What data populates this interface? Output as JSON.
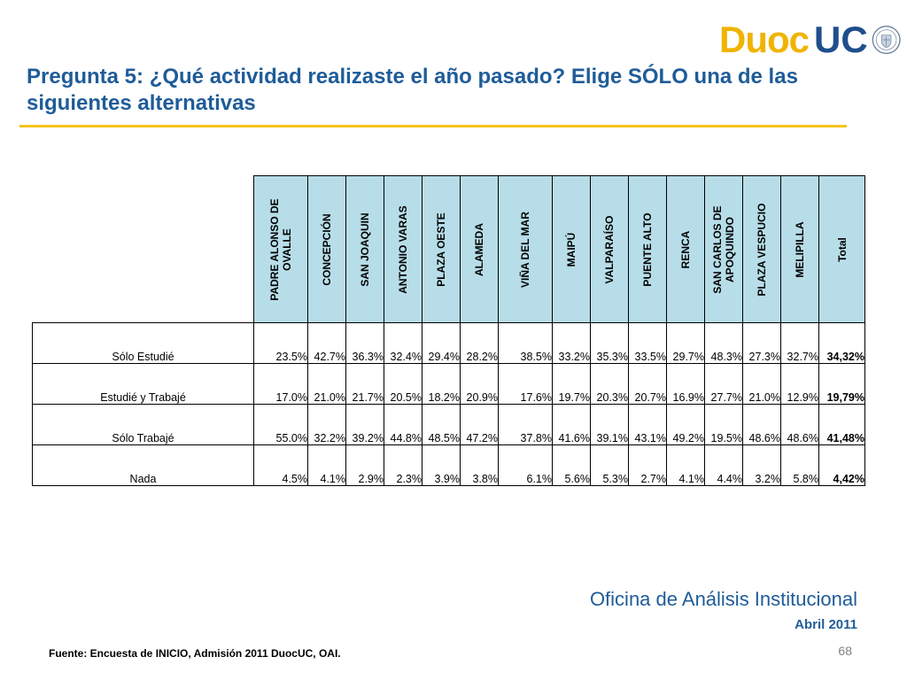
{
  "brand": {
    "duoc": "Duoc",
    "uc": "UC"
  },
  "title": "Pregunta 5: ¿Qué actividad realizaste el año pasado? Elige SÓLO una de las siguientes alternativas",
  "table": {
    "columns": [
      "PADRE ALONSO DE OVALLE",
      "CONCEPCIÓN",
      "SAN JOAQUIN",
      "ANTONIO VARAS",
      "PLAZA OESTE",
      "ALAMEDA",
      "VIÑA DEL MAR",
      "MAIPÚ",
      "VALPARAÍSO",
      "PUENTE ALTO",
      "RENCA",
      "SAN CARLOS DE APOQUINDO",
      "PLAZA VESPUCIO",
      "MELIPILLA",
      "Total"
    ],
    "rows": [
      {
        "label": "Sólo Estudié",
        "values": [
          "23.5%",
          "42.7%",
          "36.3%",
          "32.4%",
          "29.4%",
          "28.2%",
          "38.5%",
          "33.2%",
          "35.3%",
          "33.5%",
          "29.7%",
          "48.3%",
          "27.3%",
          "32.7%",
          "34,32%"
        ]
      },
      {
        "label": "Estudié y Trabajé",
        "values": [
          "17.0%",
          "21.0%",
          "21.7%",
          "20.5%",
          "18.2%",
          "20.9%",
          "17.6%",
          "19.7%",
          "20.3%",
          "20.7%",
          "16.9%",
          "27.7%",
          "21.0%",
          "12.9%",
          "19,79%"
        ]
      },
      {
        "label": "Sólo Trabajé",
        "values": [
          "55.0%",
          "32.2%",
          "39.2%",
          "44.8%",
          "48.5%",
          "47.2%",
          "37.8%",
          "41.6%",
          "39.1%",
          "43.1%",
          "49.2%",
          "19.5%",
          "48.6%",
          "48.6%",
          "41,48%"
        ]
      },
      {
        "label": "Nada",
        "values": [
          "4.5%",
          "4.1%",
          "2.9%",
          "2.3%",
          "3.9%",
          "3.8%",
          "6.1%",
          "5.6%",
          "5.3%",
          "2.7%",
          "4.1%",
          "4.4%",
          "3.2%",
          "5.8%",
          "4,42%"
        ]
      }
    ]
  },
  "footer": {
    "office": "Oficina de Análisis Institucional",
    "date": "Abril 2011",
    "source": "Fuente: Encuesta de INICIO, Admisión 2011 DuocUC, OAI.",
    "page": "68"
  }
}
